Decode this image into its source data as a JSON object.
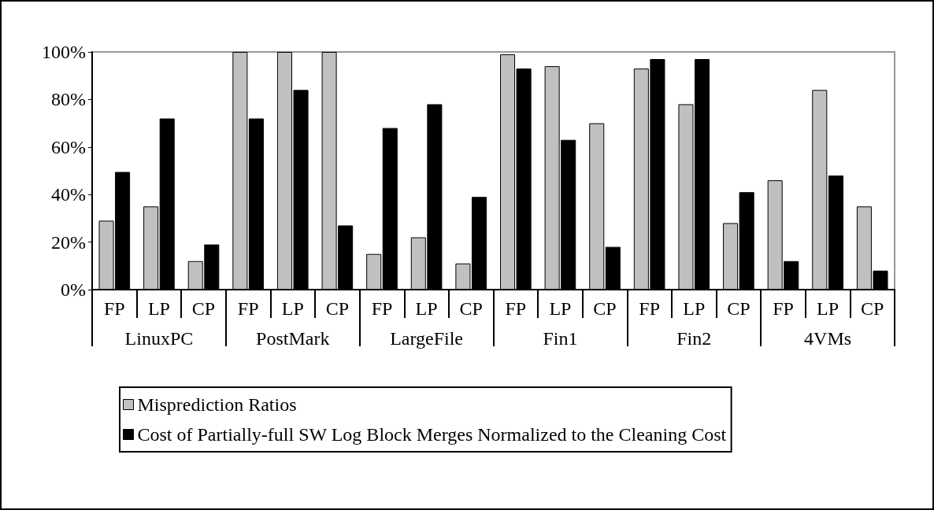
{
  "chart_data": {
    "type": "bar",
    "categories": [
      "FP",
      "LP",
      "CP",
      "FP",
      "LP",
      "CP",
      "FP",
      "LP",
      "CP",
      "FP",
      "LP",
      "CP",
      "FP",
      "LP",
      "CP",
      "FP",
      "LP",
      "CP"
    ],
    "annotations": [
      "LinuxPC",
      "PostMark",
      "LargeFile",
      "Fin1",
      "Fin2",
      "4VMs"
    ],
    "series": [
      {
        "name": "Misprediction Ratios",
        "color": "#c0c0c0",
        "values": [
          29,
          35,
          12,
          100,
          100,
          100,
          15,
          22,
          11,
          99,
          94,
          70,
          93,
          78,
          28,
          46,
          84,
          35
        ]
      },
      {
        "name": "Cost of Partially-full SW Log Block Merges Normalized to the Cleaning Cost",
        "color": "#000000",
        "values": [
          49.5,
          72,
          19,
          72,
          84,
          27,
          68,
          78,
          39,
          93,
          63,
          18,
          97,
          97,
          41,
          12,
          48,
          8
        ]
      }
    ],
    "ylim": [
      0,
      100
    ],
    "yticks": [
      {
        "value": 0,
        "label": "0%"
      },
      {
        "value": 20,
        "label": "20%"
      },
      {
        "value": 40,
        "label": "40%"
      },
      {
        "value": 60,
        "label": "60%"
      },
      {
        "value": 80,
        "label": "80%"
      },
      {
        "value": 100,
        "label": "100%"
      }
    ],
    "legend": "bottom"
  }
}
